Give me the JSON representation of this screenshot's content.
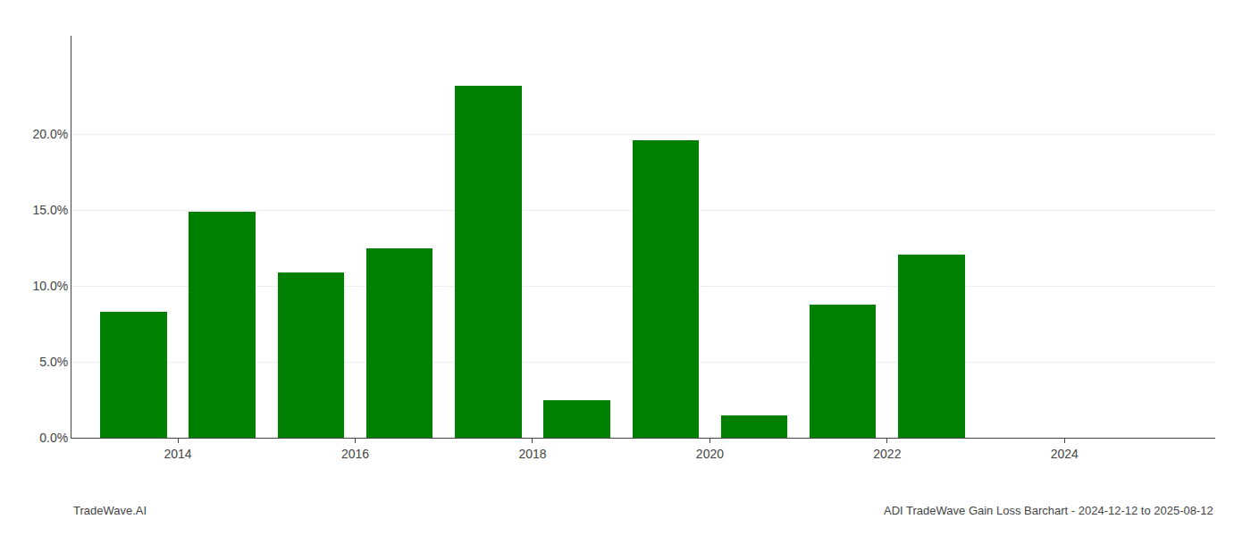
{
  "chart_data": {
    "type": "bar",
    "x": [
      2013,
      2014,
      2015,
      2016,
      2017,
      2018,
      2019,
      2020,
      2021,
      2022,
      2023,
      2024
    ],
    "values": [
      0.083,
      0.149,
      0.109,
      0.125,
      0.232,
      0.025,
      0.196,
      0.015,
      0.088,
      0.121,
      0.0,
      0.0
    ],
    "color": "#008000",
    "xlim": [
      2012.3,
      2025.2
    ],
    "xticks": [
      {
        "value": 2013.5,
        "label": "2014"
      },
      {
        "value": 2015.5,
        "label": "2016"
      },
      {
        "value": 2017.5,
        "label": "2018"
      },
      {
        "value": 2019.5,
        "label": "2020"
      },
      {
        "value": 2021.5,
        "label": "2022"
      },
      {
        "value": 2023.5,
        "label": "2024"
      }
    ],
    "ylim": [
      0,
      0.265
    ],
    "yticks": [
      {
        "value": 0.0,
        "label": "0.0%"
      },
      {
        "value": 0.05,
        "label": "5.0%"
      },
      {
        "value": 0.1,
        "label": "10.0%"
      },
      {
        "value": 0.15,
        "label": "15.0%"
      },
      {
        "value": 0.2,
        "label": "20.0%"
      }
    ],
    "grid": true,
    "annotations": [
      "TradeWave.AI",
      "ADI TradeWave Gain Loss Barchart - 2024-12-12 to 2025-08-12"
    ]
  }
}
